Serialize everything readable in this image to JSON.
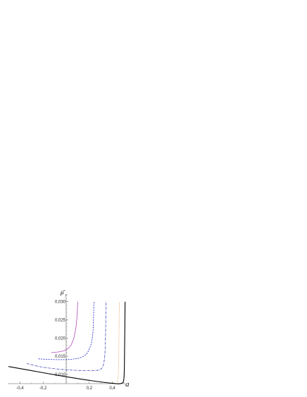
{
  "chart_data": {
    "type": "line",
    "title": "",
    "xlabel": "a",
    "ylabel": "μ̄",
    "ylabel_subscript": "y",
    "xlim": [
      -0.5,
      0.5
    ],
    "ylim": [
      0.0075,
      0.0305
    ],
    "grid": false,
    "x_ticks": [
      {
        "value": -0.4,
        "label": "-0,4"
      },
      {
        "value": -0.2,
        "label": "-0,2"
      },
      {
        "value": 0.2,
        "label": "0,2"
      },
      {
        "value": 0.4,
        "label": "0,4"
      }
    ],
    "y_ticks": [
      {
        "value": 0.01,
        "label": "0,010"
      },
      {
        "value": 0.015,
        "label": "0,015"
      },
      {
        "value": 0.02,
        "label": "0,020"
      },
      {
        "value": 0.025,
        "label": "0,025"
      },
      {
        "value": 0.03,
        "label": "0,030"
      }
    ],
    "series": [
      {
        "color": "#b24db8",
        "style": "solid",
        "points": [
          [
            -0.13,
            0.016
          ],
          [
            -0.05,
            0.0163
          ],
          [
            0.0,
            0.0168
          ],
          [
            0.04,
            0.018
          ],
          [
            0.07,
            0.0205
          ],
          [
            0.09,
            0.0245
          ],
          [
            0.1,
            0.03
          ]
        ]
      },
      {
        "color": "#1c1cc8",
        "style": "dashed",
        "points": [
          [
            -0.24,
            0.0143
          ],
          [
            -0.1,
            0.0141
          ],
          [
            0.05,
            0.0142
          ],
          [
            0.15,
            0.015
          ],
          [
            0.2,
            0.017
          ],
          [
            0.23,
            0.021
          ],
          [
            0.24,
            0.03
          ]
        ]
      },
      {
        "color": "#3434b4",
        "style": "dashdot",
        "points": [
          [
            -0.34,
            0.013
          ],
          [
            -0.2,
            0.012
          ],
          [
            0.0,
            0.0113
          ],
          [
            0.2,
            0.0111
          ],
          [
            0.3,
            0.0115
          ],
          [
            0.33,
            0.014
          ],
          [
            0.34,
            0.02
          ],
          [
            0.345,
            0.03
          ]
        ]
      },
      {
        "color": "#e08838",
        "style": "dotted",
        "points": [
          [
            0.44,
            0.008
          ],
          [
            0.45,
            0.0095
          ],
          [
            0.455,
            0.015
          ],
          [
            0.46,
            0.03
          ]
        ]
      },
      {
        "color": "#000000",
        "style": "solid",
        "points": [
          [
            -0.5,
            0.0122
          ],
          [
            -0.2,
            0.0105
          ],
          [
            0.0,
            0.0094
          ],
          [
            0.2,
            0.0084
          ],
          [
            0.4,
            0.0076
          ],
          [
            0.48,
            0.0076
          ],
          [
            0.5,
            0.009
          ],
          [
            0.505,
            0.015
          ],
          [
            0.51,
            0.03
          ]
        ]
      }
    ]
  }
}
